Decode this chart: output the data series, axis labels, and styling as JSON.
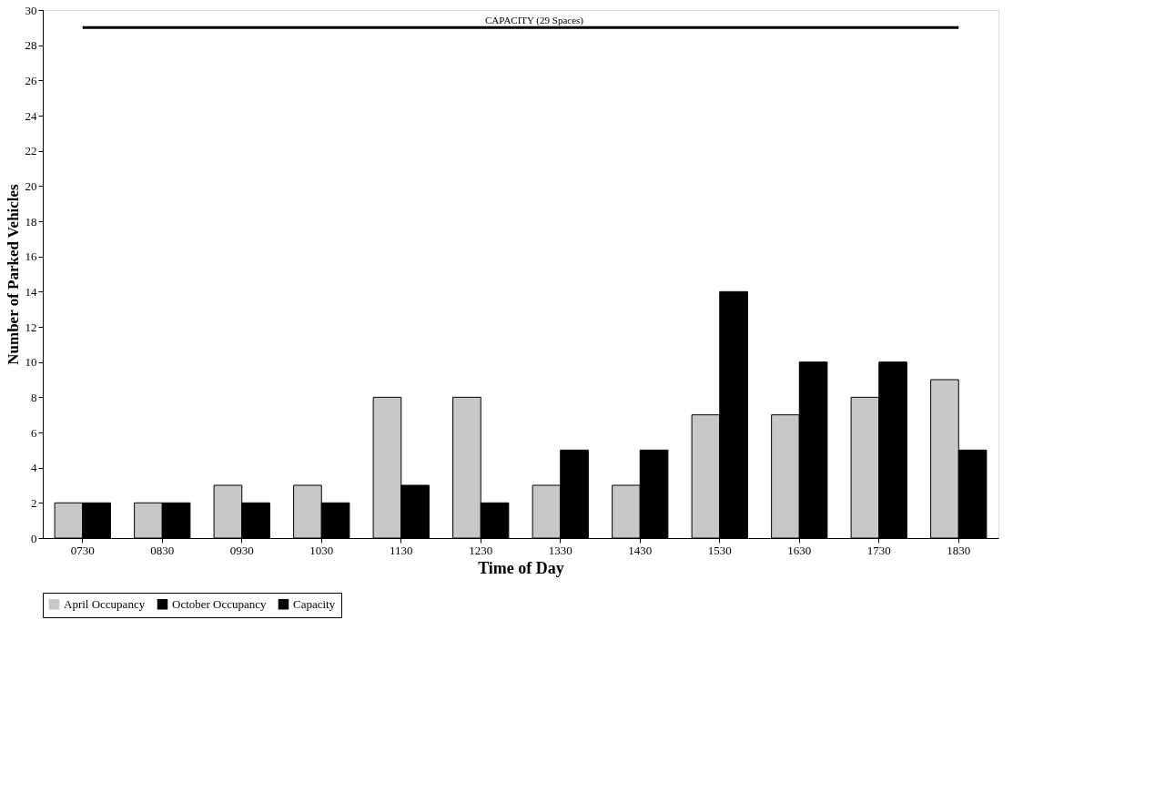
{
  "chart_data": {
    "type": "bar",
    "xlabel": "Time of Day",
    "ylabel": "Number of Parked Vehicles",
    "categories": [
      "0730",
      "0830",
      "0930",
      "1030",
      "1130",
      "1230",
      "1330",
      "1430",
      "1530",
      "1630",
      "1730",
      "1830"
    ],
    "series": [
      {
        "name": "April Occupancy",
        "color": "#c8c8c8",
        "values": [
          2,
          2,
          3,
          3,
          8,
          8,
          3,
          3,
          7,
          7,
          8,
          9
        ]
      },
      {
        "name": "October Occupancy",
        "color": "#000000",
        "values": [
          2,
          2,
          2,
          2,
          3,
          2,
          5,
          5,
          14,
          10,
          10,
          5
        ]
      },
      {
        "name": "Capacity",
        "type": "line",
        "color": "#000000",
        "values": [
          29,
          29,
          29,
          29,
          29,
          29,
          29,
          29,
          29,
          29,
          29,
          29
        ]
      }
    ],
    "annotations": [
      "CAPACITY (29 Spaces)"
    ],
    "ylim": [
      0,
      30
    ],
    "yticks": [
      0,
      2,
      4,
      6,
      8,
      10,
      12,
      14,
      16,
      18,
      20,
      22,
      24,
      26,
      28,
      30
    ],
    "grid": false,
    "legend": "bottom"
  }
}
